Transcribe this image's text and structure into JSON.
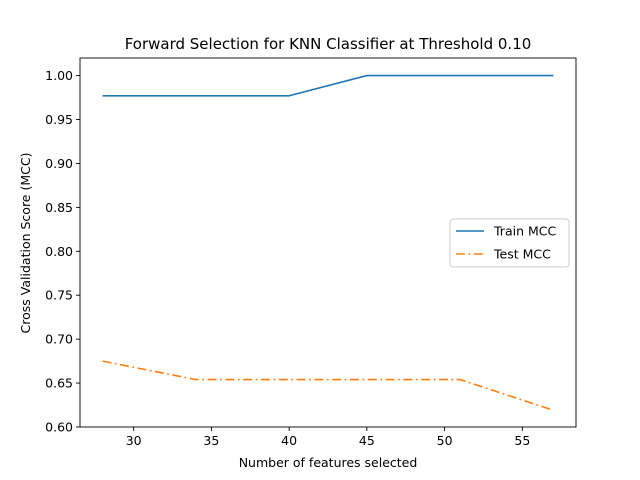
{
  "chart_data": {
    "type": "line",
    "title": "Forward Selection for KNN Classifier at Threshold 0.10",
    "xlabel": "Number of features selected",
    "ylabel": "Cross Validation Score (MCC)",
    "xlim": [
      26.55,
      58.45
    ],
    "ylim": [
      0.6,
      1.02
    ],
    "xticks": [
      30,
      35,
      40,
      45,
      50,
      55
    ],
    "yticks": [
      0.6,
      0.65,
      0.7,
      0.75,
      0.8,
      0.85,
      0.9,
      0.95,
      1.0
    ],
    "ytick_labels": [
      "0.60",
      "0.65",
      "0.70",
      "0.75",
      "0.80",
      "0.85",
      "0.90",
      "0.95",
      "1.00"
    ],
    "legend_position": "center-right",
    "series": [
      {
        "name": "Train MCC",
        "color": "#1f77b4",
        "dash": "solid",
        "x": [
          28,
          34,
          40,
          45,
          51,
          57
        ],
        "y": [
          0.977,
          0.977,
          0.977,
          1.0,
          1.0,
          1.0
        ]
      },
      {
        "name": "Test MCC",
        "color": "#ff7f0e",
        "dash": "dashdot",
        "x": [
          28,
          34,
          40,
          45,
          51,
          57
        ],
        "y": [
          0.675,
          0.654,
          0.654,
          0.654,
          0.654,
          0.619
        ]
      }
    ]
  }
}
